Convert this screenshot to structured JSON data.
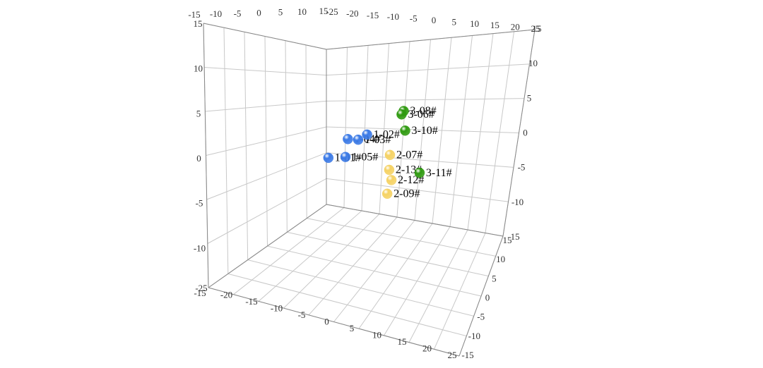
{
  "chart_data": {
    "type": "scatter3d",
    "xlim": [
      -25,
      25
    ],
    "xticks": [
      -25,
      -20,
      -15,
      -10,
      -5,
      0,
      5,
      10,
      15,
      20,
      25
    ],
    "ylim": [
      -15,
      15
    ],
    "yticks": [
      -15,
      -10,
      -5,
      0,
      5,
      10,
      15
    ],
    "zlim": [
      -15,
      15
    ],
    "zticks": [
      -15,
      -10,
      -5,
      0,
      5,
      10,
      15
    ],
    "grid": true,
    "series": [
      {
        "color": "#3b7ae6",
        "labels": [
          "1-01#",
          "1-05#",
          "1-04#",
          "1-03#",
          "1-02#"
        ],
        "x": [
          -10.5,
          -6.5,
          -5.9,
          -3.5,
          -1.4
        ],
        "y": [
          0,
          0,
          0,
          0,
          0
        ],
        "z": [
          -1.6,
          -1.3,
          1.0,
          1.0,
          1.7
        ]
      },
      {
        "color": "#f5d264",
        "labels": [
          "2-07#",
          "2-13#",
          "2-12#",
          "2-09#"
        ],
        "x": [
          3.9,
          3.7,
          4.2,
          3.2
        ],
        "y": [
          0,
          0,
          0,
          0
        ],
        "z": [
          -0.6,
          -2.4,
          -3.6,
          -5.3
        ]
      },
      {
        "color": "#2f9a10",
        "labels": [
          "3-08#",
          "3-06#",
          "3-10#",
          "3-11#"
        ],
        "x": [
          7.2,
          6.7,
          7.5,
          10.8
        ],
        "y": [
          0,
          0,
          0,
          0
        ],
        "z": [
          4.7,
          4.3,
          2.4,
          -2.4
        ]
      }
    ]
  }
}
